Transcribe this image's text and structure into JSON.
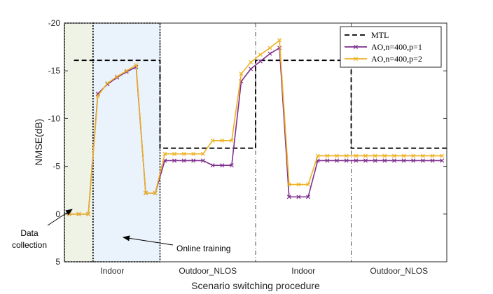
{
  "chart_data": {
    "type": "line",
    "title": "",
    "xlabel": "Scenario switching procedure",
    "ylabel": "NMSE(dB)",
    "ylim": [
      -20,
      5
    ],
    "y_reversed": true,
    "yticks": [
      -20,
      -15,
      -10,
      -5,
      0,
      5
    ],
    "ytick_labels": [
      "-20",
      "-15",
      "-10",
      "-5",
      "0",
      "5"
    ],
    "x_segments": [
      "Indoor",
      "Outdoor_NLOS",
      "Indoor",
      "Outdoor_NLOS"
    ],
    "grid": false,
    "legend_position": "top-right",
    "series": [
      {
        "name": "MTL",
        "color": "#000000",
        "style": "dashed",
        "segments": [
          {
            "x": [
              0.5,
              9.5
            ],
            "y": [
              -16.1,
              -16.1
            ]
          },
          {
            "x": [
              9.5,
              19.5
            ],
            "y": [
              -6.9,
              -6.9
            ]
          },
          {
            "x": [
              19.5,
              29.5
            ],
            "y": [
              -16.1,
              -16.1
            ]
          },
          {
            "x": [
              29.5,
              39.5
            ],
            "y": [
              -6.9,
              -6.9
            ]
          }
        ]
      },
      {
        "name": "AO,n=400,p=1",
        "color": "#7e2f8e",
        "marker": "x",
        "x": [
          0,
          1,
          2,
          3,
          4,
          5,
          6,
          7,
          8,
          9,
          10,
          11,
          12,
          13,
          14,
          15,
          16,
          17,
          18,
          19,
          20,
          21,
          22,
          23,
          24,
          25,
          26,
          27,
          28,
          29,
          30,
          31,
          32,
          33,
          34,
          35,
          36,
          37,
          38,
          39
        ],
        "y": [
          0,
          0,
          0,
          -12.6,
          -13.6,
          -14.3,
          -14.9,
          -15.4,
          -2.2,
          -2.2,
          -5.6,
          -5.6,
          -5.6,
          -5.6,
          -5.6,
          -5.1,
          -5.1,
          -5.1,
          -13.9,
          -15.2,
          -16.0,
          -16.8,
          -17.4,
          -1.8,
          -1.8,
          -1.8,
          -5.6,
          -5.6,
          -5.6,
          -5.6,
          -5.6,
          -5.6,
          -5.6,
          -5.6,
          -5.6,
          -5.6,
          -5.6,
          -5.6,
          -5.6,
          -5.6
        ]
      },
      {
        "name": "AO,n=400,p=2",
        "color": "#edb120",
        "marker": "x",
        "x": [
          0,
          1,
          2,
          3,
          4,
          5,
          6,
          7,
          8,
          9,
          10,
          11,
          12,
          13,
          14,
          15,
          16,
          17,
          18,
          19,
          20,
          21,
          22,
          23,
          24,
          25,
          26,
          27,
          28,
          29,
          30,
          31,
          32,
          33,
          34,
          35,
          36,
          37,
          38,
          39
        ],
        "y": [
          0,
          0,
          0,
          -12.4,
          -13.7,
          -14.4,
          -15.0,
          -15.6,
          -2.2,
          -2.2,
          -6.3,
          -6.3,
          -6.3,
          -6.3,
          -6.3,
          -7.7,
          -7.7,
          -7.7,
          -14.7,
          -15.9,
          -16.7,
          -17.4,
          -18.2,
          -3.1,
          -3.1,
          -3.1,
          -6.1,
          -6.1,
          -6.1,
          -6.1,
          -6.1,
          -6.1,
          -6.1,
          -6.1,
          -6.1,
          -6.1,
          -6.1,
          -6.1,
          -6.1,
          -6.1
        ]
      }
    ],
    "annotations": [
      {
        "text_lines": [
          "Data",
          "collection"
        ]
      },
      {
        "text_lines": [
          "Online training"
        ]
      }
    ]
  }
}
